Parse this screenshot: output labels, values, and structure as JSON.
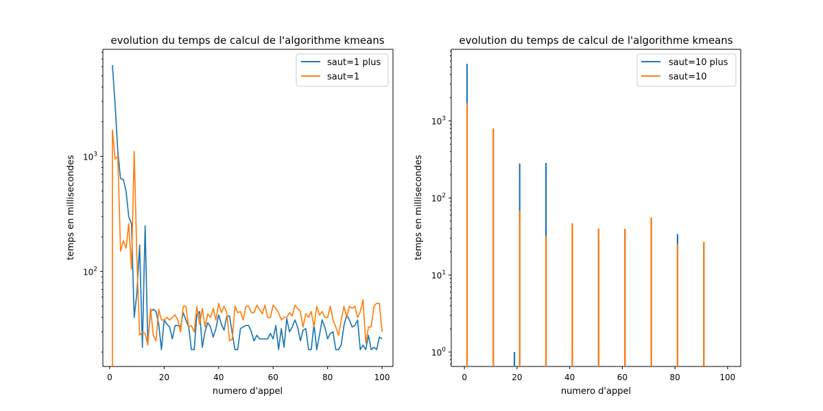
{
  "chart_data": [
    {
      "type": "line",
      "title": "evolution du temps de calcul de l'algorithme kmeans",
      "xlabel": "numero d'appel",
      "ylabel": "temps en millisecondes",
      "xlim": [
        -2.5,
        104
      ],
      "ylim": [
        15,
        8500
      ],
      "yscale": "log",
      "xticks": [
        0,
        20,
        40,
        60,
        80,
        100
      ],
      "yticks": [
        {
          "value": 100,
          "base": "10",
          "exp": "2"
        },
        {
          "value": 1000,
          "base": "10",
          "exp": "3"
        }
      ],
      "grid": false,
      "legend": "top-right",
      "series": [
        {
          "name": "saut=1 plus",
          "color": "#1f77b4",
          "x": [
            1,
            2,
            3,
            4,
            5,
            6,
            7,
            8,
            9,
            10,
            11,
            12,
            13,
            14,
            15,
            16,
            17,
            18,
            19,
            20,
            21,
            22,
            23,
            24,
            25,
            26,
            27,
            28,
            29,
            30,
            31,
            32,
            33,
            34,
            35,
            36,
            37,
            38,
            39,
            40,
            41,
            42,
            43,
            44,
            45,
            46,
            47,
            48,
            49,
            50,
            51,
            52,
            53,
            54,
            55,
            56,
            57,
            58,
            59,
            60,
            61,
            62,
            63,
            64,
            65,
            66,
            67,
            68,
            69,
            70,
            71,
            72,
            73,
            74,
            75,
            76,
            77,
            78,
            79,
            80,
            81,
            82,
            83,
            84,
            85,
            86,
            87,
            88,
            89,
            90,
            91,
            92,
            93,
            94,
            95,
            96,
            97,
            98,
            99,
            100
          ],
          "y": [
            6200,
            2800,
            1100,
            640,
            630,
            500,
            300,
            260,
            40,
            65,
            170,
            22,
            250,
            24,
            45,
            47,
            45,
            35,
            21,
            38,
            35,
            33,
            26,
            34,
            34,
            33,
            44,
            38,
            33,
            21,
            21,
            42,
            45,
            22,
            30,
            36,
            33,
            27,
            32,
            42,
            35,
            31,
            41,
            41,
            29,
            21,
            21,
            32,
            33,
            34,
            34,
            30,
            25,
            28,
            26,
            26,
            26,
            26,
            29,
            26,
            34,
            21,
            32,
            22,
            39,
            30,
            33,
            38,
            33,
            25,
            31,
            32,
            21,
            21,
            35,
            21,
            28,
            38,
            33,
            26,
            29,
            30,
            21,
            21,
            23,
            34,
            42,
            38,
            33,
            34,
            38,
            21,
            23,
            21,
            28,
            21,
            22,
            21,
            27,
            26
          ]
        },
        {
          "name": "saut=1",
          "color": "#ff7f0e",
          "x": [
            1,
            2,
            3,
            4,
            5,
            6,
            7,
            8,
            9,
            10,
            11,
            12,
            13,
            14,
            15,
            16,
            17,
            18,
            19,
            20,
            21,
            22,
            23,
            24,
            25,
            26,
            27,
            28,
            29,
            30,
            31,
            32,
            33,
            34,
            35,
            36,
            37,
            38,
            39,
            40,
            41,
            42,
            43,
            44,
            45,
            46,
            47,
            48,
            49,
            50,
            51,
            52,
            53,
            54,
            55,
            56,
            57,
            58,
            59,
            60,
            61,
            62,
            63,
            64,
            65,
            66,
            67,
            68,
            69,
            70,
            71,
            72,
            73,
            74,
            75,
            76,
            77,
            78,
            79,
            80,
            81,
            82,
            83,
            84,
            85,
            86,
            87,
            88,
            89,
            90,
            91,
            92,
            93,
            94,
            95,
            96,
            97,
            98,
            99,
            100
          ],
          "y": [
            1700,
            950,
            1000,
            150,
            185,
            160,
            260,
            105,
            1100,
            130,
            28,
            30,
            29,
            23,
            48,
            28,
            25,
            47,
            38,
            38,
            40,
            38,
            40,
            42,
            38,
            30,
            50,
            50,
            33,
            34,
            30,
            50,
            35,
            48,
            33,
            43,
            40,
            48,
            38,
            53,
            44,
            50,
            44,
            25,
            26,
            50,
            44,
            45,
            38,
            50,
            50,
            44,
            44,
            51,
            47,
            43,
            51,
            40,
            40,
            51,
            48,
            44,
            38,
            40,
            40,
            44,
            41,
            51,
            48,
            45,
            33,
            43,
            40,
            45,
            33,
            50,
            42,
            45,
            40,
            40,
            50,
            38,
            33,
            28,
            38,
            50,
            40,
            50,
            48,
            50,
            40,
            45,
            57,
            24,
            33,
            33,
            50,
            53,
            53,
            30
          ]
        },
        {
          "name": "",
          "color": "#ff7f0e",
          "x": [
            1,
            1
          ],
          "y": [
            15,
            1700
          ]
        }
      ]
    },
    {
      "type": "line",
      "title": "evolution du temps de calcul de l'algorithme kmeans",
      "xlabel": "numero d'appel",
      "ylabel": "temps en millisecondes",
      "xlim": [
        -5,
        105
      ],
      "ylim": [
        0.65,
        8500
      ],
      "yscale": "log",
      "xticks": [
        0,
        20,
        40,
        60,
        80,
        100
      ],
      "yticks": [
        {
          "value": 1,
          "base": "10",
          "exp": "0"
        },
        {
          "value": 10,
          "base": "10",
          "exp": "1"
        },
        {
          "value": 100,
          "base": "10",
          "exp": "2"
        },
        {
          "value": 1000,
          "base": "10",
          "exp": "3"
        }
      ],
      "grid": false,
      "legend": "top-right",
      "spikes": [
        {
          "name": "saut=10 plus",
          "color": "#1f77b4",
          "x": [
            1,
            11,
            19,
            21,
            31,
            41,
            51,
            61,
            71,
            81,
            91
          ],
          "y": [
            5500,
            760,
            1,
            280,
            285,
            45,
            39,
            39,
            54,
            34,
            26
          ]
        },
        {
          "name": "saut=10",
          "color": "#ff7f0e",
          "x": [
            1,
            11,
            21,
            31,
            41,
            51,
            61,
            71,
            81,
            91
          ],
          "y": [
            1700,
            800,
            68,
            32,
            47,
            40,
            40,
            56,
            25,
            27
          ]
        }
      ]
    }
  ]
}
